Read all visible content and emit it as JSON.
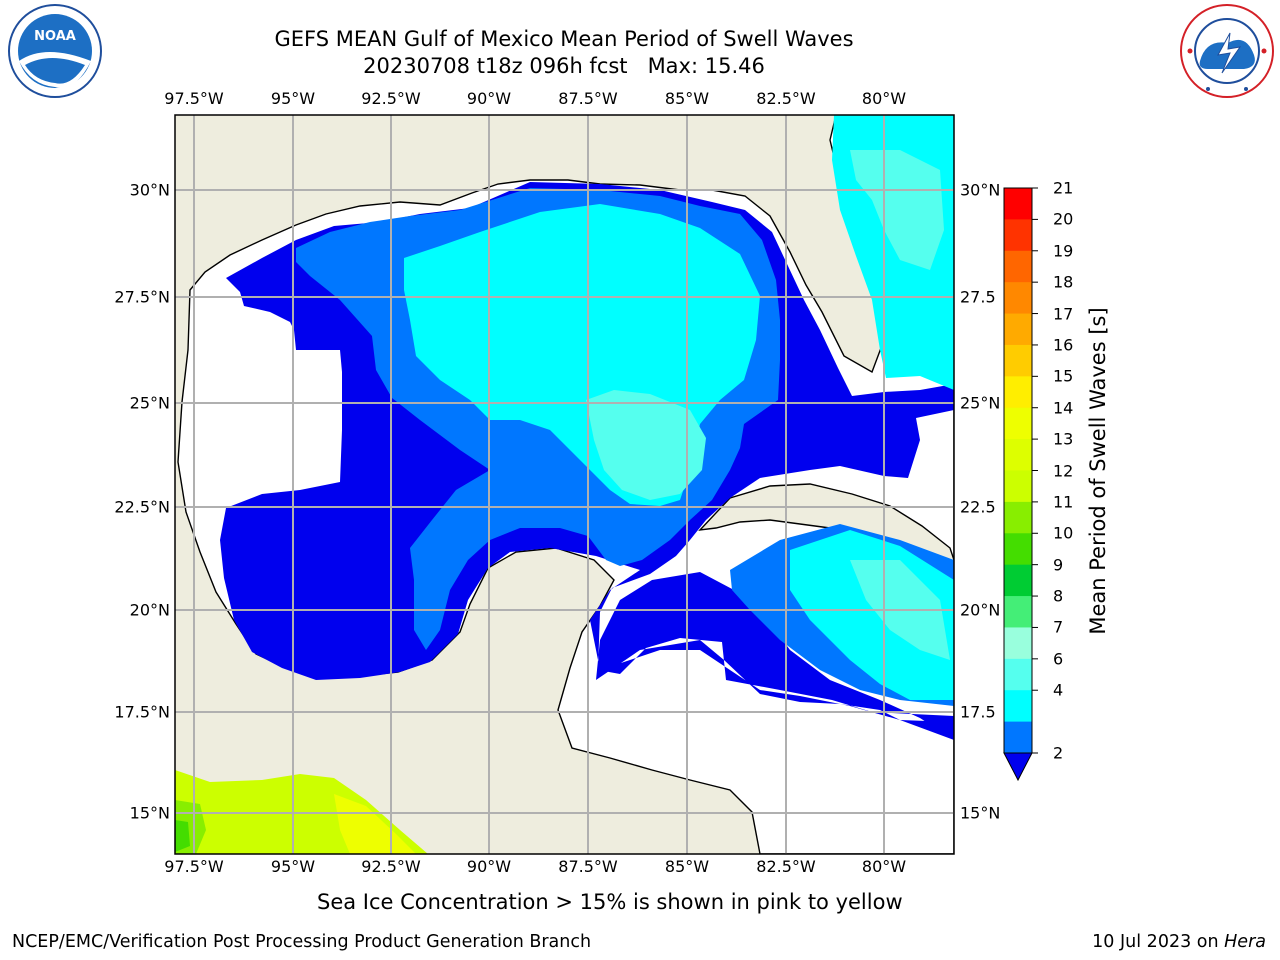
{
  "title": {
    "line1": "GEFS MEAN Gulf of Mexico Mean Period of Swell Waves",
    "line2": "20230708 t18z 096h fcst   Max: 15.46"
  },
  "logos": {
    "left": "NOAA",
    "right": "NATIONAL WEATHER SERVICE"
  },
  "map": {
    "lon_ticks": [
      "97.5°W",
      "95°W",
      "92.5°W",
      "90°W",
      "87.5°W",
      "85°W",
      "82.5°W",
      "80°W"
    ],
    "lat_ticks_left": [
      "30°N",
      "27.5°N",
      "25°N",
      "22.5°N",
      "20°N",
      "17.5°N",
      "15°N"
    ],
    "lat_ticks_right": [
      "30°N",
      "27.5",
      "25°N",
      "22.5",
      "20°N",
      "17.5",
      "15°N"
    ],
    "colors": {
      "land": "#eeedde",
      "ocean_nodata": "#ffffff",
      "grid": "#b0b0b0"
    }
  },
  "colorbar": {
    "label": "Mean Period of Swell Waves [s]",
    "ticks": [
      "21",
      "20",
      "19",
      "18",
      "17",
      "16",
      "15",
      "14",
      "13",
      "12",
      "11",
      "10",
      "9",
      "8",
      "7",
      "6",
      "4",
      "2"
    ],
    "colors_top_to_bottom": [
      "#ff0000",
      "#ff3300",
      "#ff6600",
      "#ff8800",
      "#ffaa00",
      "#ffcc00",
      "#ffee00",
      "#eeff00",
      "#ddff00",
      "#ccff00",
      "#88ee00",
      "#44dd00",
      "#00cc33",
      "#44ee77",
      "#99ffdd",
      "#55ffee",
      "#00ffff",
      "#0077ff"
    ],
    "extend_color": "#0000ee"
  },
  "caption": "Sea Ice Concentration > 15% is shown in pink to yellow",
  "footer": {
    "left": "NCEP/EMC/Verification Post Processing Product Generation Branch",
    "right_prefix": "10 Jul 2023 on ",
    "right_host": "Hera"
  }
}
